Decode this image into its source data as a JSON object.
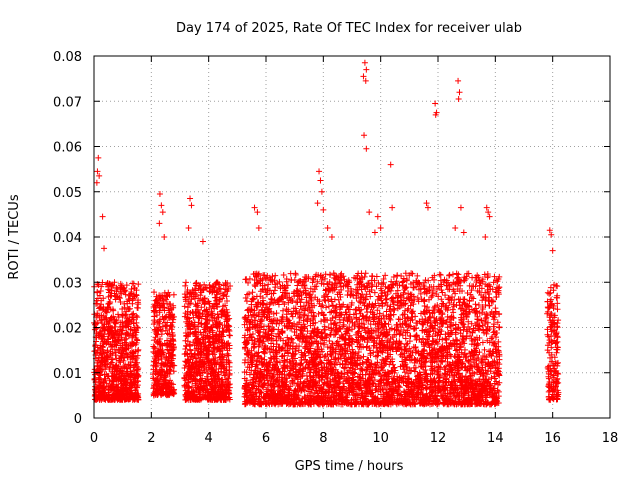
{
  "chart_data": {
    "type": "scatter",
    "title": "Day 174 of 2025, Rate Of TEC Index for receiver ulab",
    "xlabel": "GPS time / hours",
    "ylabel": "ROTI / TECUs",
    "xlim": [
      0,
      18
    ],
    "ylim": [
      0,
      0.08
    ],
    "xticks": [
      0,
      2,
      4,
      6,
      8,
      10,
      12,
      14,
      16,
      18
    ],
    "yticks": [
      0,
      0.01,
      0.02,
      0.03,
      0.04,
      0.05,
      0.06,
      0.07,
      0.08
    ],
    "xtick_labels": [
      "0",
      "2",
      "4",
      "6",
      "8",
      "10",
      "12",
      "14",
      "16",
      "18"
    ],
    "ytick_labels": [
      "0",
      "0.01",
      "0.02",
      "0.03",
      "0.04",
      "0.05",
      "0.06",
      "0.07",
      "0.08"
    ],
    "grid": true,
    "marker": "+",
    "series_color": "#ff0000",
    "clusters": [
      {
        "x_range": [
          0.0,
          1.55
        ],
        "y_range": [
          0.004,
          0.03
        ],
        "density": 900
      },
      {
        "x_range": [
          2.05,
          2.8
        ],
        "y_range": [
          0.005,
          0.028
        ],
        "density": 380
      },
      {
        "x_range": [
          3.15,
          4.75
        ],
        "y_range": [
          0.004,
          0.03
        ],
        "density": 900
      },
      {
        "x_range": [
          5.25,
          14.15
        ],
        "y_range": [
          0.003,
          0.032
        ],
        "density": 4200
      },
      {
        "x_range": [
          15.8,
          16.2
        ],
        "y_range": [
          0.004,
          0.03
        ],
        "density": 160
      }
    ],
    "outliers": [
      [
        0.15,
        0.0575
      ],
      [
        0.12,
        0.0545
      ],
      [
        0.18,
        0.0535
      ],
      [
        0.1,
        0.052
      ],
      [
        0.3,
        0.0445
      ],
      [
        0.35,
        0.0375
      ],
      [
        2.3,
        0.0495
      ],
      [
        2.35,
        0.047
      ],
      [
        2.4,
        0.0455
      ],
      [
        2.28,
        0.043
      ],
      [
        2.45,
        0.04
      ],
      [
        3.35,
        0.0485
      ],
      [
        3.4,
        0.047
      ],
      [
        3.3,
        0.042
      ],
      [
        3.8,
        0.039
      ],
      [
        5.6,
        0.0465
      ],
      [
        5.7,
        0.0455
      ],
      [
        5.75,
        0.042
      ],
      [
        7.85,
        0.0545
      ],
      [
        7.9,
        0.0525
      ],
      [
        7.95,
        0.05
      ],
      [
        7.8,
        0.0475
      ],
      [
        8.0,
        0.046
      ],
      [
        8.15,
        0.042
      ],
      [
        8.3,
        0.04
      ],
      [
        9.45,
        0.0785
      ],
      [
        9.5,
        0.077
      ],
      [
        9.4,
        0.0755
      ],
      [
        9.48,
        0.0745
      ],
      [
        9.42,
        0.0625
      ],
      [
        9.5,
        0.0595
      ],
      [
        9.6,
        0.0455
      ],
      [
        9.9,
        0.0445
      ],
      [
        10.0,
        0.042
      ],
      [
        9.8,
        0.041
      ],
      [
        10.35,
        0.056
      ],
      [
        10.4,
        0.0465
      ],
      [
        11.6,
        0.0475
      ],
      [
        11.65,
        0.0465
      ],
      [
        11.9,
        0.0695
      ],
      [
        11.95,
        0.0675
      ],
      [
        11.92,
        0.067
      ],
      [
        12.7,
        0.0745
      ],
      [
        12.75,
        0.072
      ],
      [
        12.72,
        0.0705
      ],
      [
        12.8,
        0.0465
      ],
      [
        12.6,
        0.042
      ],
      [
        12.9,
        0.041
      ],
      [
        13.7,
        0.0465
      ],
      [
        13.75,
        0.0455
      ],
      [
        13.8,
        0.0445
      ],
      [
        13.65,
        0.04
      ],
      [
        15.9,
        0.0415
      ],
      [
        15.95,
        0.0405
      ],
      [
        16.0,
        0.037
      ]
    ]
  }
}
